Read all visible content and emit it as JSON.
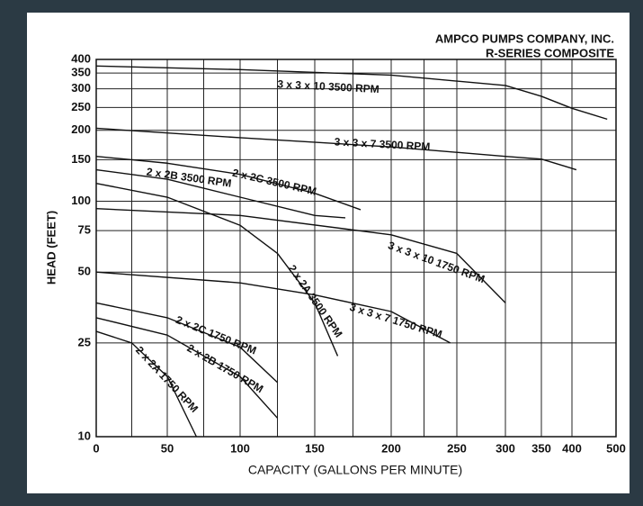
{
  "chart_data": {
    "type": "line",
    "title": "AMPCO PUMPS COMPANY, INC.",
    "subtitle": "R-SERIES COMPOSITE",
    "x_label": "CAPACITY (GALLONS PER MINUTE)",
    "y_label": "HEAD (FEET)",
    "xlim": [
      0,
      500
    ],
    "xticks": [
      0,
      50,
      100,
      150,
      200,
      250,
      300,
      350,
      400,
      500
    ],
    "x_minor_grid": [
      25,
      75,
      125,
      175,
      225
    ],
    "ylim": [
      10,
      400
    ],
    "yticks": [
      10,
      25,
      50,
      75,
      100,
      150,
      200,
      250,
      300,
      350,
      400
    ],
    "log_y": true,
    "grid": true,
    "color": "#111111",
    "series": [
      {
        "name": "3 x 3 x 10 3500 RPM",
        "x": [
          0,
          100,
          200,
          300,
          350,
          400,
          480
        ],
        "values": [
          375,
          362,
          343,
          310,
          279,
          248,
          223
        ]
      },
      {
        "name": "3 x 3 x 7 3500 RPM",
        "x": [
          0,
          100,
          200,
          300,
          350,
          410
        ],
        "values": [
          204,
          186,
          170,
          155,
          151,
          136
        ]
      },
      {
        "name": "2 x 2C 3500 RPM",
        "x": [
          0,
          50,
          100,
          150,
          180
        ],
        "values": [
          155,
          145,
          130,
          108,
          92
        ]
      },
      {
        "name": "2 x 2B 3500 RPM",
        "x": [
          0,
          50,
          100,
          150,
          170
        ],
        "values": [
          136,
          124,
          104,
          87,
          85
        ]
      },
      {
        "name": "2 x 2A 3500 RPM",
        "x": [
          0,
          50,
          100,
          125,
          150,
          165
        ],
        "values": [
          119,
          104,
          79,
          60,
          37,
          22
        ]
      },
      {
        "name": "3 x 3 x 10 1750 RPM",
        "x": [
          0,
          100,
          200,
          250,
          300
        ],
        "values": [
          93,
          87,
          72,
          60,
          37
        ]
      },
      {
        "name": "3 x 3 x 7 1750 RPM",
        "x": [
          0,
          100,
          150,
          200,
          245
        ],
        "values": [
          50,
          45,
          40,
          34,
          25
        ]
      },
      {
        "name": "2 x 2C 1750 RPM",
        "x": [
          0,
          50,
          100,
          125
        ],
        "values": [
          37,
          32,
          24,
          17
        ]
      },
      {
        "name": "2 x 2B 1750 RPM",
        "x": [
          0,
          50,
          100,
          125
        ],
        "values": [
          32,
          27,
          18,
          12
        ]
      },
      {
        "name": "2 x 2A 1750 RPM",
        "x": [
          0,
          25,
          50,
          70
        ],
        "values": [
          28,
          25,
          18,
          10
        ]
      }
    ]
  }
}
